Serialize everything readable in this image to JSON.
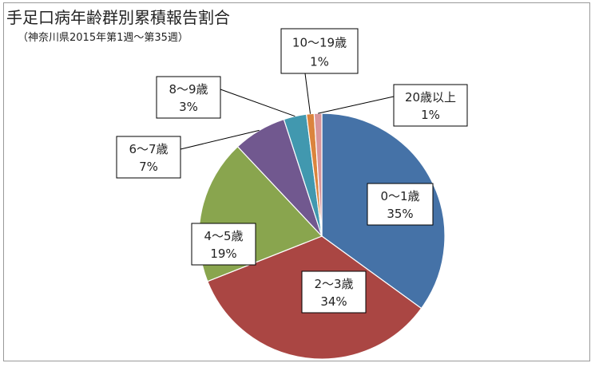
{
  "chart_data": {
    "type": "pie",
    "title": "手足口病年齢群別累積報告割合",
    "subtitle": "（神奈川県2015年第1週〜第35週）",
    "legend": "none",
    "slices": [
      {
        "category": "0〜1歳",
        "value": 35,
        "label": "35%",
        "color": "#4572a7"
      },
      {
        "category": "2〜3歳",
        "value": 34,
        "label": "34%",
        "color": "#aa4643"
      },
      {
        "category": "4〜5歳",
        "value": 19,
        "label": "19%",
        "color": "#89a54e"
      },
      {
        "category": "6〜7歳",
        "value": 7,
        "label": "7%",
        "color": "#71588f"
      },
      {
        "category": "8〜9歳",
        "value": 3,
        "label": "3%",
        "color": "#4198af"
      },
      {
        "category": "10〜19歳",
        "value": 1,
        "label": "1%",
        "color": "#db843d"
      },
      {
        "category": "20歳以上",
        "value": 1,
        "label": "1%",
        "color": "#d9959a"
      }
    ]
  }
}
